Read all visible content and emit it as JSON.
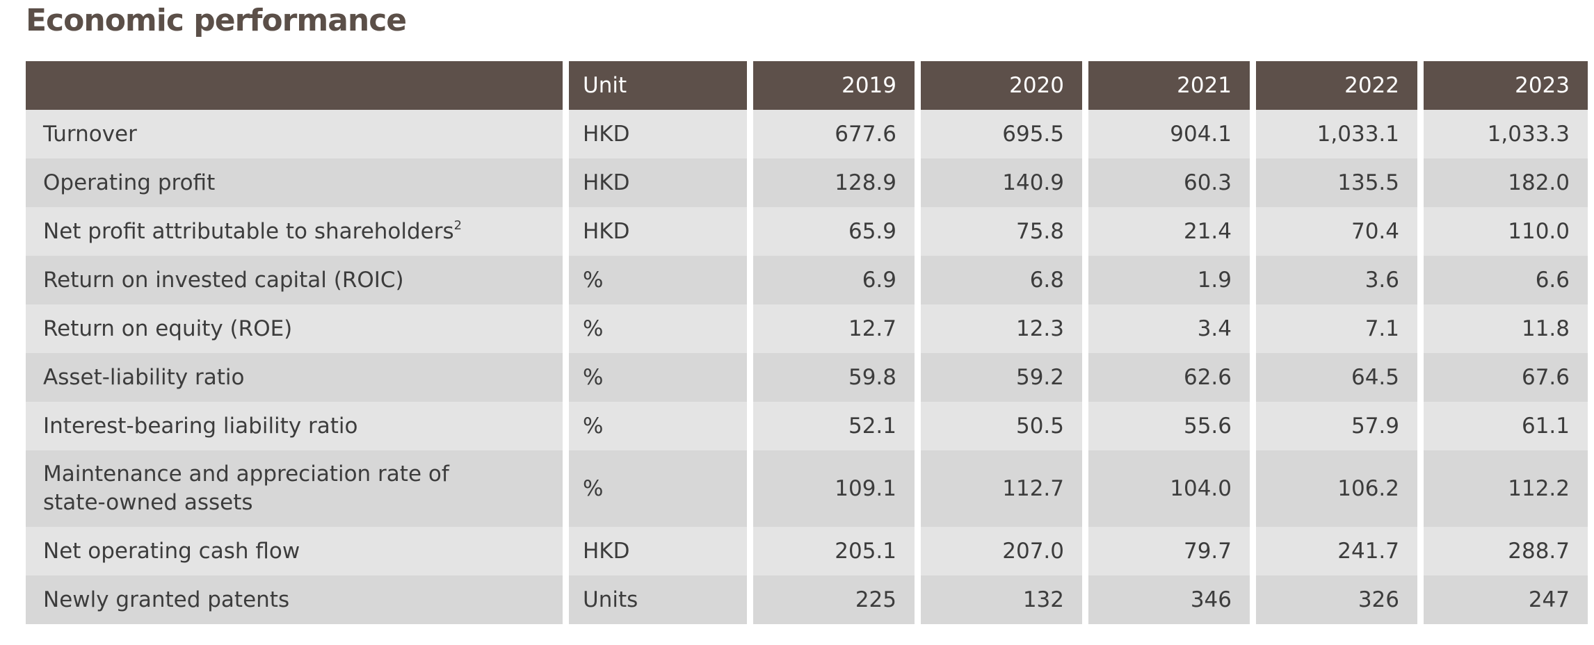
{
  "page": {
    "title": "Economic performance"
  },
  "table": {
    "headers": {
      "indicator": "",
      "unit": "Unit",
      "years": [
        "2019",
        "2020",
        "2021",
        "2022",
        "2023"
      ]
    },
    "rows": [
      {
        "indicator": "Turnover",
        "footnote": "",
        "unit": "HKD",
        "values": [
          "677.6",
          "695.5",
          "904.1",
          "1,033.1",
          "1,033.3"
        ]
      },
      {
        "indicator": "Operating profit",
        "footnote": "",
        "unit": "HKD",
        "values": [
          "128.9",
          "140.9",
          "60.3",
          "135.5",
          "182.0"
        ]
      },
      {
        "indicator": "Net profit attributable to shareholders",
        "footnote": "2",
        "unit": "HKD",
        "values": [
          "65.9",
          "75.8",
          "21.4",
          "70.4",
          "110.0"
        ]
      },
      {
        "indicator": "Return on invested capital (ROIC)",
        "footnote": "",
        "unit": "%",
        "values": [
          "6.9",
          "6.8",
          "1.9",
          "3.6",
          "6.6"
        ]
      },
      {
        "indicator": "Return on equity (ROE)",
        "footnote": "",
        "unit": "%",
        "values": [
          "12.7",
          "12.3",
          "3.4",
          "7.1",
          "11.8"
        ]
      },
      {
        "indicator": "Asset-liability ratio",
        "footnote": "",
        "unit": "%",
        "values": [
          "59.8",
          "59.2",
          "62.6",
          "64.5",
          "67.6"
        ]
      },
      {
        "indicator": "Interest-bearing liability ratio",
        "footnote": "",
        "unit": "%",
        "values": [
          "52.1",
          "50.5",
          "55.6",
          "57.9",
          "61.1"
        ]
      },
      {
        "indicator": "Maintenance and appreciation rate of state-owned assets",
        "footnote": "",
        "unit": "%",
        "values": [
          "109.1",
          "112.7",
          "104.0",
          "106.2",
          "112.2"
        ]
      },
      {
        "indicator": "Net operating cash flow",
        "footnote": "",
        "unit": "HKD",
        "values": [
          "205.1",
          "207.0",
          "79.7",
          "241.7",
          "288.7"
        ]
      },
      {
        "indicator": "Newly granted patents",
        "footnote": "",
        "unit": "Units",
        "values": [
          "225",
          "132",
          "346",
          "326",
          "247"
        ]
      }
    ]
  }
}
